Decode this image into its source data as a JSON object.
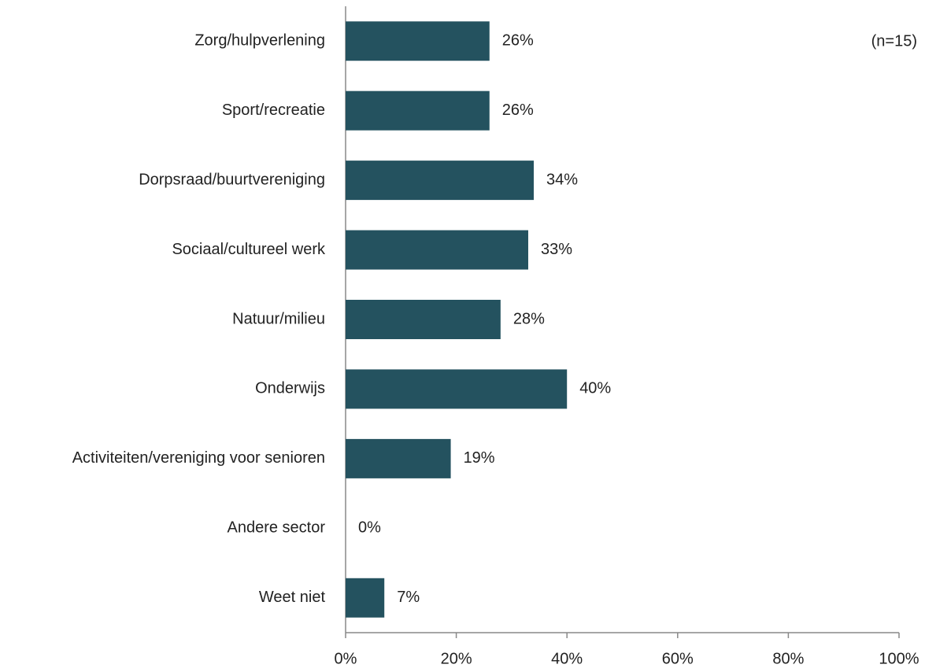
{
  "chart_data": {
    "type": "bar",
    "orientation": "horizontal",
    "annotation": "(n=15)",
    "categories": [
      "Zorg/hulpverlening",
      "Sport/recreatie",
      "Dorpsraad/buurtvereniging",
      "Sociaal/cultureel werk",
      "Natuur/milieu",
      "Onderwijs",
      "Activiteiten/vereniging voor senioren",
      "Andere sector",
      "Weet niet"
    ],
    "values": [
      26,
      26,
      34,
      33,
      28,
      40,
      19,
      0,
      7
    ],
    "value_labels": [
      "26%",
      "26%",
      "34%",
      "33%",
      "28%",
      "40%",
      "19%",
      "0%",
      "7%"
    ],
    "color": "#24525f",
    "xlim": [
      0,
      100
    ],
    "xticks": [
      {
        "value": 0,
        "label": "0%"
      },
      {
        "value": 20,
        "label": "20%"
      },
      {
        "value": 40,
        "label": "40%"
      },
      {
        "value": 60,
        "label": "60%"
      },
      {
        "value": 80,
        "label": "80%"
      },
      {
        "value": 100,
        "label": "100%"
      }
    ],
    "grid": false
  }
}
